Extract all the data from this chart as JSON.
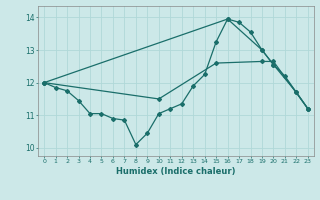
{
  "xlabel": "Humidex (Indice chaleur)",
  "bg_color": "#cce8e8",
  "line_color": "#1a6e6a",
  "grid_color": "#b0d8d8",
  "xlim": [
    -0.5,
    23.5
  ],
  "ylim": [
    9.75,
    14.35
  ],
  "yticks": [
    10,
    11,
    12,
    13,
    14
  ],
  "xticks": [
    0,
    1,
    2,
    3,
    4,
    5,
    6,
    7,
    8,
    9,
    10,
    11,
    12,
    13,
    14,
    15,
    16,
    17,
    18,
    19,
    20,
    21,
    22,
    23
  ],
  "line1_x": [
    0,
    1,
    2,
    3,
    4,
    5,
    6,
    7,
    8,
    9,
    10,
    11,
    12,
    13,
    14,
    15,
    16,
    17,
    18,
    19,
    20,
    21,
    22,
    23
  ],
  "line1_y": [
    12.0,
    11.85,
    11.75,
    11.45,
    11.05,
    11.05,
    10.9,
    10.85,
    10.1,
    10.45,
    11.05,
    11.2,
    11.35,
    11.9,
    12.25,
    13.25,
    13.95,
    13.85,
    13.55,
    13.0,
    12.55,
    12.2,
    11.7,
    11.2
  ],
  "line2_x": [
    0,
    16,
    19,
    20,
    22,
    23
  ],
  "line2_y": [
    12.0,
    13.95,
    13.0,
    12.55,
    11.7,
    11.2
  ],
  "line3_x": [
    0,
    10,
    15,
    19,
    20,
    23
  ],
  "line3_y": [
    12.0,
    11.5,
    12.6,
    12.65,
    12.65,
    11.2
  ]
}
